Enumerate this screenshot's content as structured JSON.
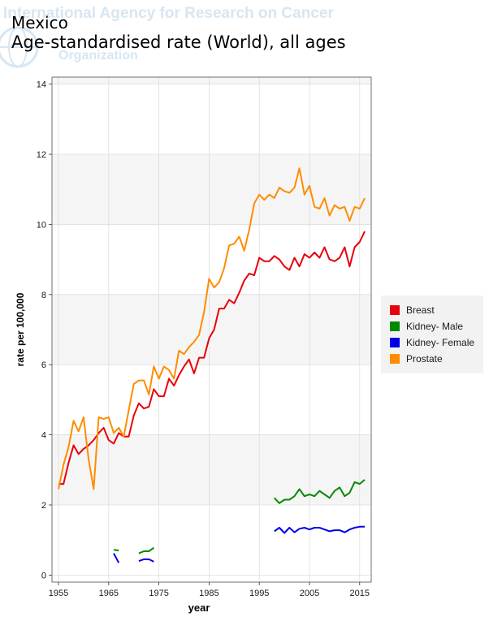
{
  "watermark": {
    "line1": "International Agency for Research on Cancer",
    "line2": "Organization"
  },
  "header": {
    "title": "Mexico",
    "subtitle": "Age-standardised rate (World), all ages"
  },
  "legend": {
    "items": [
      {
        "label": "Breast",
        "color": "#e8000b"
      },
      {
        "label": "Kidney- Male",
        "color": "#008a00"
      },
      {
        "label": "Kidney- Female",
        "color": "#0000e6"
      },
      {
        "label": "Prostate",
        "color": "#ff8c00"
      }
    ]
  },
  "chart_data": {
    "type": "line",
    "title": "Mexico",
    "subtitle": "Age-standardised rate (World), all ages",
    "xlabel": "year",
    "ylabel": "rate per 100,000",
    "xlim": [
      1953.7,
      2017.3
    ],
    "ylim": [
      -0.2,
      14.2
    ],
    "x_ticks": [
      1955,
      1965,
      1975,
      1985,
      1995,
      2005,
      2015
    ],
    "y_ticks": [
      0,
      2,
      4,
      6,
      8,
      10,
      12,
      14
    ],
    "grid": true,
    "legend_position": "right",
    "series": [
      {
        "name": "Breast",
        "color": "#e8000b",
        "x": [
          1955,
          1956,
          1957,
          1958,
          1959,
          1960,
          1961,
          1962,
          1963,
          1964,
          1965,
          1966,
          1967,
          1968,
          1969,
          1970,
          1971,
          1972,
          1973,
          1974,
          1975,
          1976,
          1977,
          1978,
          1979,
          1980,
          1981,
          1982,
          1983,
          1984,
          1985,
          1986,
          1987,
          1988,
          1989,
          1990,
          1991,
          1992,
          1993,
          1994,
          1995,
          1996,
          1997,
          1998,
          1999,
          2000,
          2001,
          2002,
          2003,
          2004,
          2005,
          2006,
          2007,
          2008,
          2009,
          2010,
          2011,
          2012,
          2013,
          2014,
          2015,
          2016
        ],
        "y": [
          2.6,
          2.6,
          3.2,
          3.7,
          3.45,
          3.6,
          3.7,
          3.85,
          4.05,
          4.2,
          3.85,
          3.75,
          4.05,
          3.95,
          3.95,
          4.55,
          4.9,
          4.75,
          4.8,
          5.3,
          5.1,
          5.1,
          5.6,
          5.4,
          5.7,
          5.95,
          6.15,
          5.75,
          6.2,
          6.2,
          6.75,
          7.0,
          7.6,
          7.6,
          7.85,
          7.75,
          8.05,
          8.4,
          8.6,
          8.55,
          9.05,
          8.95,
          8.95,
          9.1,
          9.0,
          8.8,
          8.7,
          9.05,
          8.8,
          9.15,
          9.05,
          9.2,
          9.05,
          9.35,
          9.0,
          8.95,
          9.05,
          9.35,
          8.8,
          9.35,
          9.5,
          9.8
        ]
      },
      {
        "name": "Kidney- Male",
        "color": "#008a00",
        "x": [
          1966,
          1967,
          null,
          1971,
          1972,
          1973,
          1974,
          null,
          1998,
          1999,
          2000,
          2001,
          2002,
          2003,
          2004,
          2005,
          2006,
          2007,
          2008,
          2009,
          2010,
          2011,
          2012,
          2013,
          2014,
          2015,
          2016
        ],
        "y": [
          0.72,
          0.7,
          null,
          0.62,
          0.68,
          0.68,
          0.78,
          null,
          2.2,
          2.05,
          2.15,
          2.15,
          2.25,
          2.45,
          2.25,
          2.3,
          2.25,
          2.4,
          2.3,
          2.2,
          2.4,
          2.5,
          2.25,
          2.35,
          2.65,
          2.6,
          2.72
        ]
      },
      {
        "name": "Kidney- Female",
        "color": "#0000e6",
        "x": [
          1966,
          1967,
          null,
          1971,
          1972,
          1973,
          1974,
          null,
          1998,
          1999,
          2000,
          2001,
          2002,
          2003,
          2004,
          2005,
          2006,
          2007,
          2008,
          2009,
          2010,
          2011,
          2012,
          2013,
          2014,
          2015,
          2016
        ],
        "y": [
          0.62,
          0.35,
          null,
          0.4,
          0.45,
          0.45,
          0.38,
          null,
          1.25,
          1.35,
          1.2,
          1.35,
          1.22,
          1.32,
          1.35,
          1.3,
          1.35,
          1.35,
          1.3,
          1.25,
          1.28,
          1.28,
          1.22,
          1.3,
          1.35,
          1.38,
          1.38
        ]
      },
      {
        "name": "Prostate",
        "color": "#ff8c00",
        "x": [
          1955,
          1956,
          1957,
          1958,
          1959,
          1960,
          1961,
          1962,
          1963,
          1964,
          1965,
          1966,
          1967,
          1968,
          1969,
          1970,
          1971,
          1972,
          1973,
          1974,
          1975,
          1976,
          1977,
          1978,
          1979,
          1980,
          1981,
          1982,
          1983,
          1984,
          1985,
          1986,
          1987,
          1988,
          1989,
          1990,
          1991,
          1992,
          1993,
          1994,
          1995,
          1996,
          1997,
          1998,
          1999,
          2000,
          2001,
          2002,
          2003,
          2004,
          2005,
          2006,
          2007,
          2008,
          2009,
          2010,
          2011,
          2012,
          2013,
          2014,
          2015,
          2016
        ],
        "y": [
          2.45,
          3.15,
          3.65,
          4.4,
          4.1,
          4.5,
          3.3,
          2.45,
          4.5,
          4.45,
          4.5,
          4.05,
          4.2,
          3.95,
          4.7,
          5.45,
          5.55,
          5.55,
          5.15,
          5.95,
          5.6,
          5.95,
          5.85,
          5.6,
          6.4,
          6.3,
          6.5,
          6.65,
          6.85,
          7.5,
          8.45,
          8.2,
          8.35,
          8.75,
          9.4,
          9.45,
          9.65,
          9.25,
          9.85,
          10.6,
          10.85,
          10.7,
          10.85,
          10.75,
          11.05,
          10.95,
          10.9,
          11.05,
          11.6,
          10.85,
          11.1,
          10.5,
          10.45,
          10.75,
          10.25,
          10.55,
          10.45,
          10.5,
          10.1,
          10.5,
          10.45,
          10.75
        ]
      }
    ]
  }
}
